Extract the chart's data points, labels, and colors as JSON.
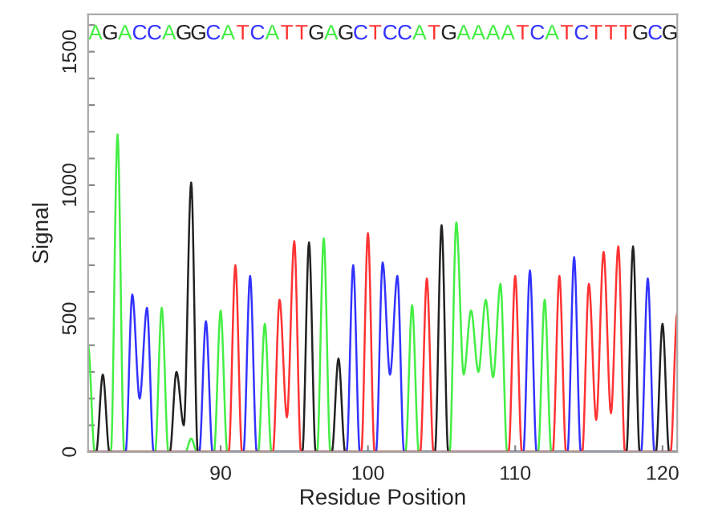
{
  "chart_data": {
    "type": "line",
    "xlabel": "Residue Position",
    "ylabel": "Signal",
    "xlim": [
      81,
      121
    ],
    "xticks": [
      90,
      100,
      110,
      120
    ],
    "ylim": [
      0,
      1640
    ],
    "yticks": [
      0,
      {
        "value": 100,
        "label": null
      },
      {
        "value": 200,
        "label": null
      },
      {
        "value": 300,
        "label": null
      },
      {
        "value": 400,
        "label": null
      },
      500,
      {
        "value": 600,
        "label": null
      },
      {
        "value": 700,
        "label": null
      },
      {
        "value": 800,
        "label": null
      },
      {
        "value": 900,
        "label": null
      },
      1000,
      {
        "value": 1100,
        "label": null
      },
      {
        "value": 1200,
        "label": null
      },
      {
        "value": 1300,
        "label": null
      },
      {
        "value": 1400,
        "label": null
      },
      1500,
      {
        "value": 1600,
        "label": null
      }
    ],
    "grid": false,
    "legend": false,
    "marker": "none",
    "line_style": "solid",
    "series": [
      {
        "color": "#44ee44",
        "x": [
          81,
          81.45,
          82.55,
          83,
          83.45,
          85.55,
          86,
          86.45,
          87.6,
          88,
          88.4,
          89.55,
          90,
          90.45,
          92.55,
          93,
          93.45,
          96.55,
          97,
          97.45,
          102.55,
          103,
          103.45,
          105.55,
          106,
          106.5,
          107,
          107.5,
          108,
          108.5,
          109,
          109.45,
          111.55,
          112,
          112.45,
          121
        ],
        "values": [
          400,
          0,
          0,
          1190,
          0,
          0,
          540,
          0,
          0,
          50,
          0,
          0,
          530,
          0,
          0,
          480,
          0,
          0,
          800,
          0,
          0,
          550,
          0,
          0,
          860,
          290,
          530,
          300,
          570,
          280,
          630,
          0,
          0,
          570,
          0,
          0
        ]
      },
      {
        "color": "#3333ff",
        "x": [
          81,
          83.55,
          84,
          84.5,
          85,
          85.45,
          88.55,
          89,
          89.45,
          91.55,
          92,
          92.45,
          98.55,
          99,
          99.45,
          100.55,
          101,
          101.5,
          102,
          102.45,
          110.55,
          111,
          111.45,
          113.55,
          114,
          114.45,
          118.55,
          119,
          119.45,
          121
        ],
        "values": [
          0,
          0,
          590,
          200,
          540,
          0,
          0,
          490,
          0,
          0,
          660,
          0,
          0,
          700,
          0,
          0,
          710,
          290,
          660,
          0,
          0,
          680,
          0,
          0,
          730,
          0,
          0,
          650,
          0,
          0
        ]
      },
      {
        "color": "#222222",
        "x": [
          81,
          81.55,
          82,
          82.45,
          86.55,
          87,
          87.5,
          88,
          88.45,
          95.55,
          96,
          96.45,
          97.55,
          98,
          98.45,
          104.55,
          105,
          105.45,
          117.55,
          118,
          118.45,
          119.55,
          120,
          120.45,
          121
        ],
        "values": [
          0,
          0,
          290,
          0,
          0,
          300,
          100,
          1010,
          0,
          0,
          785,
          0,
          0,
          350,
          0,
          0,
          850,
          0,
          0,
          770,
          0,
          0,
          480,
          0,
          0
        ]
      },
      {
        "color": "#ff3333",
        "x": [
          81,
          90.55,
          91,
          91.45,
          93.55,
          94,
          94.5,
          95,
          95.45,
          99.55,
          100,
          100.45,
          103.55,
          104,
          104.45,
          109.55,
          110,
          110.45,
          112.55,
          113,
          113.45,
          114.55,
          115,
          115.5,
          116,
          116.5,
          117,
          117.45,
          120.55,
          121
        ],
        "values": [
          0,
          0,
          700,
          0,
          0,
          570,
          130,
          790,
          0,
          0,
          820,
          0,
          0,
          650,
          0,
          0,
          660,
          0,
          0,
          660,
          0,
          0,
          630,
          120,
          750,
          145,
          770,
          0,
          0,
          520
        ]
      }
    ],
    "annotations": [
      "A",
      "G",
      "A",
      "C",
      "C",
      "A",
      "G",
      "G",
      "C",
      "A",
      "T",
      "C",
      "A",
      "T",
      "T",
      "G",
      "A",
      "G",
      "C",
      "T",
      "C",
      "C",
      "A",
      "T",
      "G",
      "A",
      "A",
      "A",
      "A",
      "T",
      "C",
      "A",
      "T",
      "C",
      "T",
      "T",
      "T",
      "G",
      "C",
      "G"
    ]
  }
}
